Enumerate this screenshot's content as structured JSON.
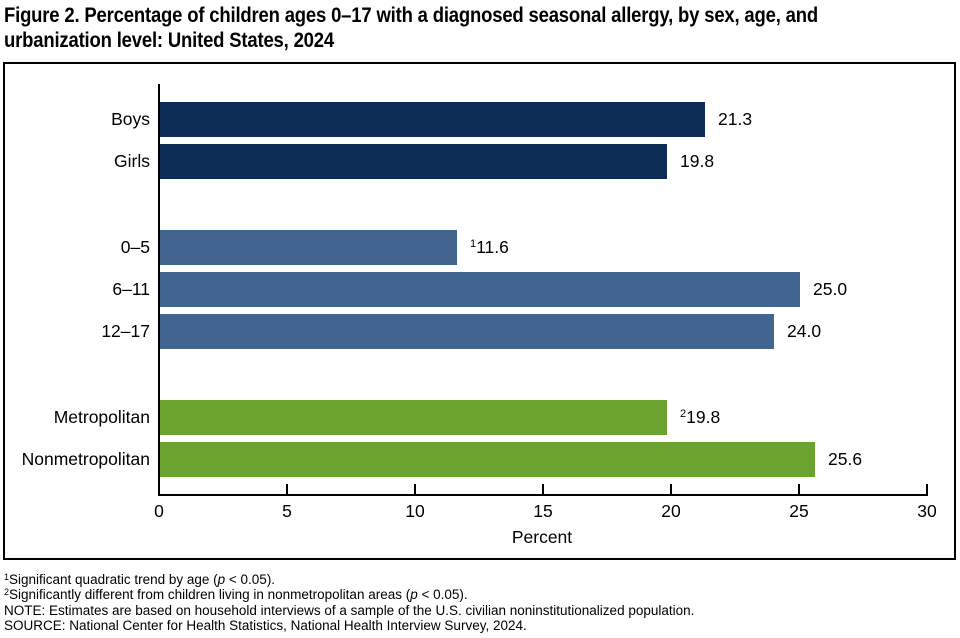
{
  "title": "Figure 2. Percentage of children ages 0–17 with a diagnosed seasonal allergy, by sex, age, and urbanization level: United States, 2024",
  "title_lines": [
    "Figure 2. Percentage of children ages 0–17 with a diagnosed seasonal allergy, by sex, age, and",
    "urbanization level: United States, 2024"
  ],
  "colors": {
    "sex_bar": "#0c2b55",
    "age_bar": "#42658f",
    "urbanization_bar": "#6ca22f",
    "axis": "#000000",
    "background": "#ffffff"
  },
  "chart_data": {
    "type": "bar",
    "orientation": "horizontal",
    "xlabel": "Percent",
    "xlim": [
      0,
      30
    ],
    "xticks": [
      0,
      5,
      10,
      15,
      20,
      25,
      30
    ],
    "grid": false,
    "legend": false,
    "groups": [
      {
        "name": "sex",
        "color": "#0c2b55",
        "bars": [
          {
            "label": "Boys",
            "value": 21.3,
            "display": "21.3",
            "marker": ""
          },
          {
            "label": "Girls",
            "value": 19.8,
            "display": "19.8",
            "marker": ""
          }
        ]
      },
      {
        "name": "age",
        "color": "#42658f",
        "bars": [
          {
            "label": "0–5",
            "value": 11.6,
            "display": "11.6",
            "marker": "1"
          },
          {
            "label": "6–11",
            "value": 25.0,
            "display": "25.0",
            "marker": ""
          },
          {
            "label": "12–17",
            "value": 24.0,
            "display": "24.0",
            "marker": ""
          }
        ]
      },
      {
        "name": "urbanization",
        "color": "#6ca22f",
        "bars": [
          {
            "label": "Metropolitan",
            "value": 19.8,
            "display": "19.8",
            "marker": "2"
          },
          {
            "label": "Nonmetropolitan",
            "value": 25.6,
            "display": "25.6",
            "marker": ""
          }
        ]
      }
    ]
  },
  "footnotes": [
    {
      "marker": "1",
      "pre": "Significant quadratic trend by age (",
      "italic": "p",
      "post": " < 0.05)."
    },
    {
      "marker": "2",
      "pre": "Significantly different from children living in nonmetropolitan areas (",
      "italic": "p",
      "post": " < 0.05)."
    },
    {
      "marker": "",
      "pre": "NOTE: Estimates are based on household interviews of a sample of the U.S. civilian noninstitutionalized population.",
      "italic": "",
      "post": ""
    },
    {
      "marker": "",
      "pre": "SOURCE: National Center for Health Statistics, National Health Interview Survey, 2024.",
      "italic": "",
      "post": ""
    }
  ]
}
